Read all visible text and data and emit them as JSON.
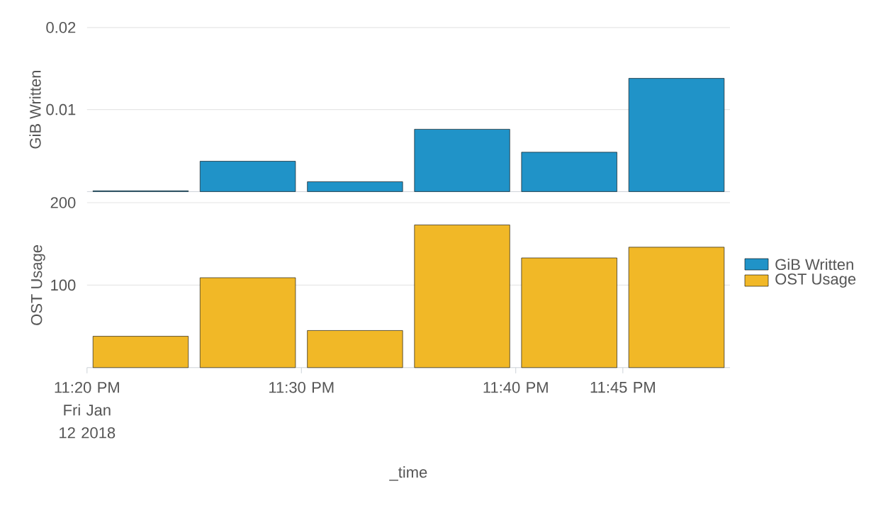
{
  "chart_data": [
    {
      "type": "bar",
      "ylabel": "GiB Written",
      "x": [
        23.375,
        23.4583,
        23.5417,
        23.625,
        23.7083,
        23.7917
      ],
      "series": [
        {
          "name": "GiB Written",
          "color": "#2093c8",
          "values": [
            0.0001,
            0.0037,
            0.0012,
            0.0076,
            0.0048,
            0.0138
          ]
        }
      ],
      "xlim": [
        23.3333,
        23.8333
      ],
      "ylim": [
        0,
        0.02
      ],
      "yticks": [
        0.01,
        0.02
      ],
      "tick_labels": "y",
      "grid": "y",
      "legend": "right"
    },
    {
      "type": "bar",
      "ylabel": "OST Usage",
      "xlabel": "_time",
      "x": [
        23.375,
        23.4583,
        23.5417,
        23.625,
        23.7083,
        23.7917
      ],
      "series": [
        {
          "name": "OST Usage",
          "color": "#f1b827",
          "values": [
            38,
            109,
            45,
            173,
            133,
            146
          ]
        }
      ],
      "xlim": [
        23.3333,
        23.8333
      ],
      "ylim": [
        0,
        200
      ],
      "yticks": [
        100,
        200
      ],
      "xticks": [
        {
          "value": 23.3333,
          "label": "11:20 PM Fri Jan 12 2018"
        },
        {
          "value": 23.5,
          "label": "11:30 PM"
        },
        {
          "value": 23.6667,
          "label": "11:40 PM"
        },
        {
          "value": 23.75,
          "label": "11:45 PM"
        }
      ],
      "grid": "y",
      "legend": "right"
    }
  ]
}
